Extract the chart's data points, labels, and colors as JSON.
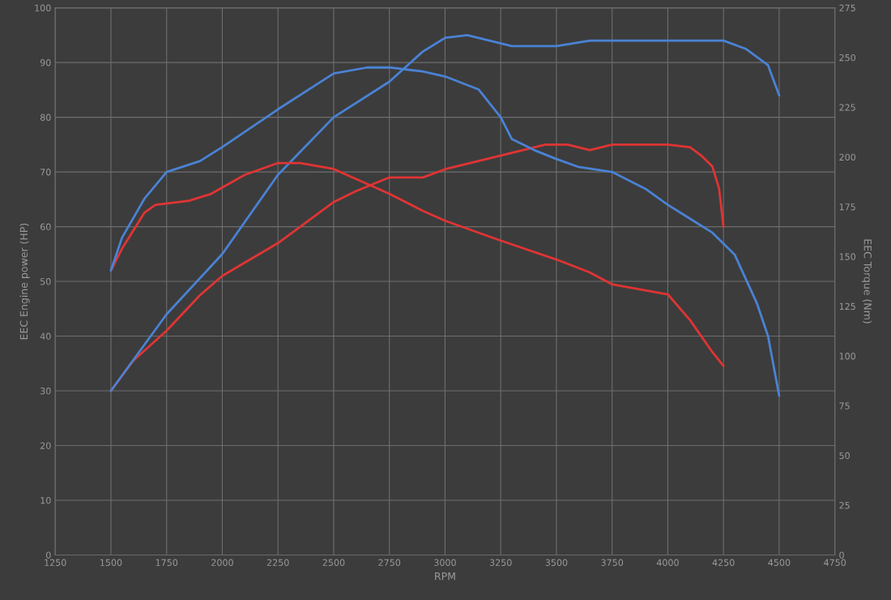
{
  "chart_data": {
    "type": "line",
    "xlabel": "RPM",
    "ylabel": "EEC Engine power (HP)",
    "y2label": "EEC Torque (Nm)",
    "xlim": [
      1250,
      4750
    ],
    "xticks": [
      1250,
      1500,
      1750,
      2000,
      2250,
      2500,
      2750,
      3000,
      3250,
      3500,
      3750,
      4000,
      4250,
      4500,
      4750
    ],
    "ylim": [
      0,
      100
    ],
    "yticks": [
      0,
      10,
      20,
      30,
      40,
      50,
      60,
      70,
      80,
      90,
      100
    ],
    "y2lim": [
      0,
      275
    ],
    "y2ticks": [
      0,
      25,
      50,
      75,
      100,
      125,
      150,
      175,
      200,
      225,
      250,
      275
    ],
    "grid": true,
    "line_style": "solid",
    "series": [
      {
        "color": "#e03434",
        "axis": "y",
        "x": [
          1500,
          1600,
          1750,
          1900,
          2000,
          2250,
          2500,
          2600,
          2750,
          2900,
          3000,
          3250,
          3450,
          3550,
          3650,
          3750,
          4000,
          4100,
          4150,
          4200,
          4230,
          4250
        ],
        "values": [
          30,
          35.5,
          41,
          47.5,
          51,
          57,
          64.5,
          66.5,
          69,
          69,
          70.5,
          73,
          75,
          75,
          74,
          75,
          75,
          74.5,
          73,
          71,
          67,
          60
        ]
      },
      {
        "color": "#e03434",
        "axis": "y2",
        "x": [
          1500,
          1550,
          1650,
          1700,
          1850,
          1950,
          2100,
          2250,
          2350,
          2500,
          2750,
          2900,
          3000,
          3250,
          3500,
          3650,
          3750,
          3900,
          4000,
          4100,
          4200,
          4250
        ],
        "values": [
          143,
          154,
          172,
          176,
          178,
          181.5,
          191,
          197,
          197,
          194,
          181.5,
          173,
          168,
          158,
          148.5,
          142,
          136,
          133,
          131,
          118,
          102,
          95
        ]
      },
      {
        "color": "#4a82d4",
        "axis": "y",
        "x": [
          1500,
          1750,
          2000,
          2250,
          2500,
          2750,
          2900,
          3000,
          3100,
          3200,
          3300,
          3500,
          3650,
          4000,
          4250,
          4350,
          4450,
          4500
        ],
        "values": [
          30,
          44,
          55,
          69.5,
          80,
          86.5,
          92,
          94.5,
          95,
          94,
          93,
          93,
          94,
          94,
          94,
          92.5,
          89.5,
          84
        ]
      },
      {
        "color": "#4a82d4",
        "axis": "y2",
        "x": [
          1500,
          1550,
          1650,
          1750,
          1900,
          2000,
          2250,
          2500,
          2650,
          2750,
          2900,
          3000,
          3150,
          3250,
          3300,
          3400,
          3500,
          3600,
          3750,
          3900,
          4000,
          4100,
          4200,
          4300,
          4400,
          4450,
          4500
        ],
        "values": [
          143,
          159.5,
          179,
          192.5,
          198,
          205,
          224,
          242,
          245,
          245,
          243,
          240.5,
          234,
          220,
          209,
          203.5,
          199,
          195,
          192.5,
          184,
          176,
          169,
          162,
          151,
          126.5,
          110,
          80
        ]
      }
    ]
  }
}
